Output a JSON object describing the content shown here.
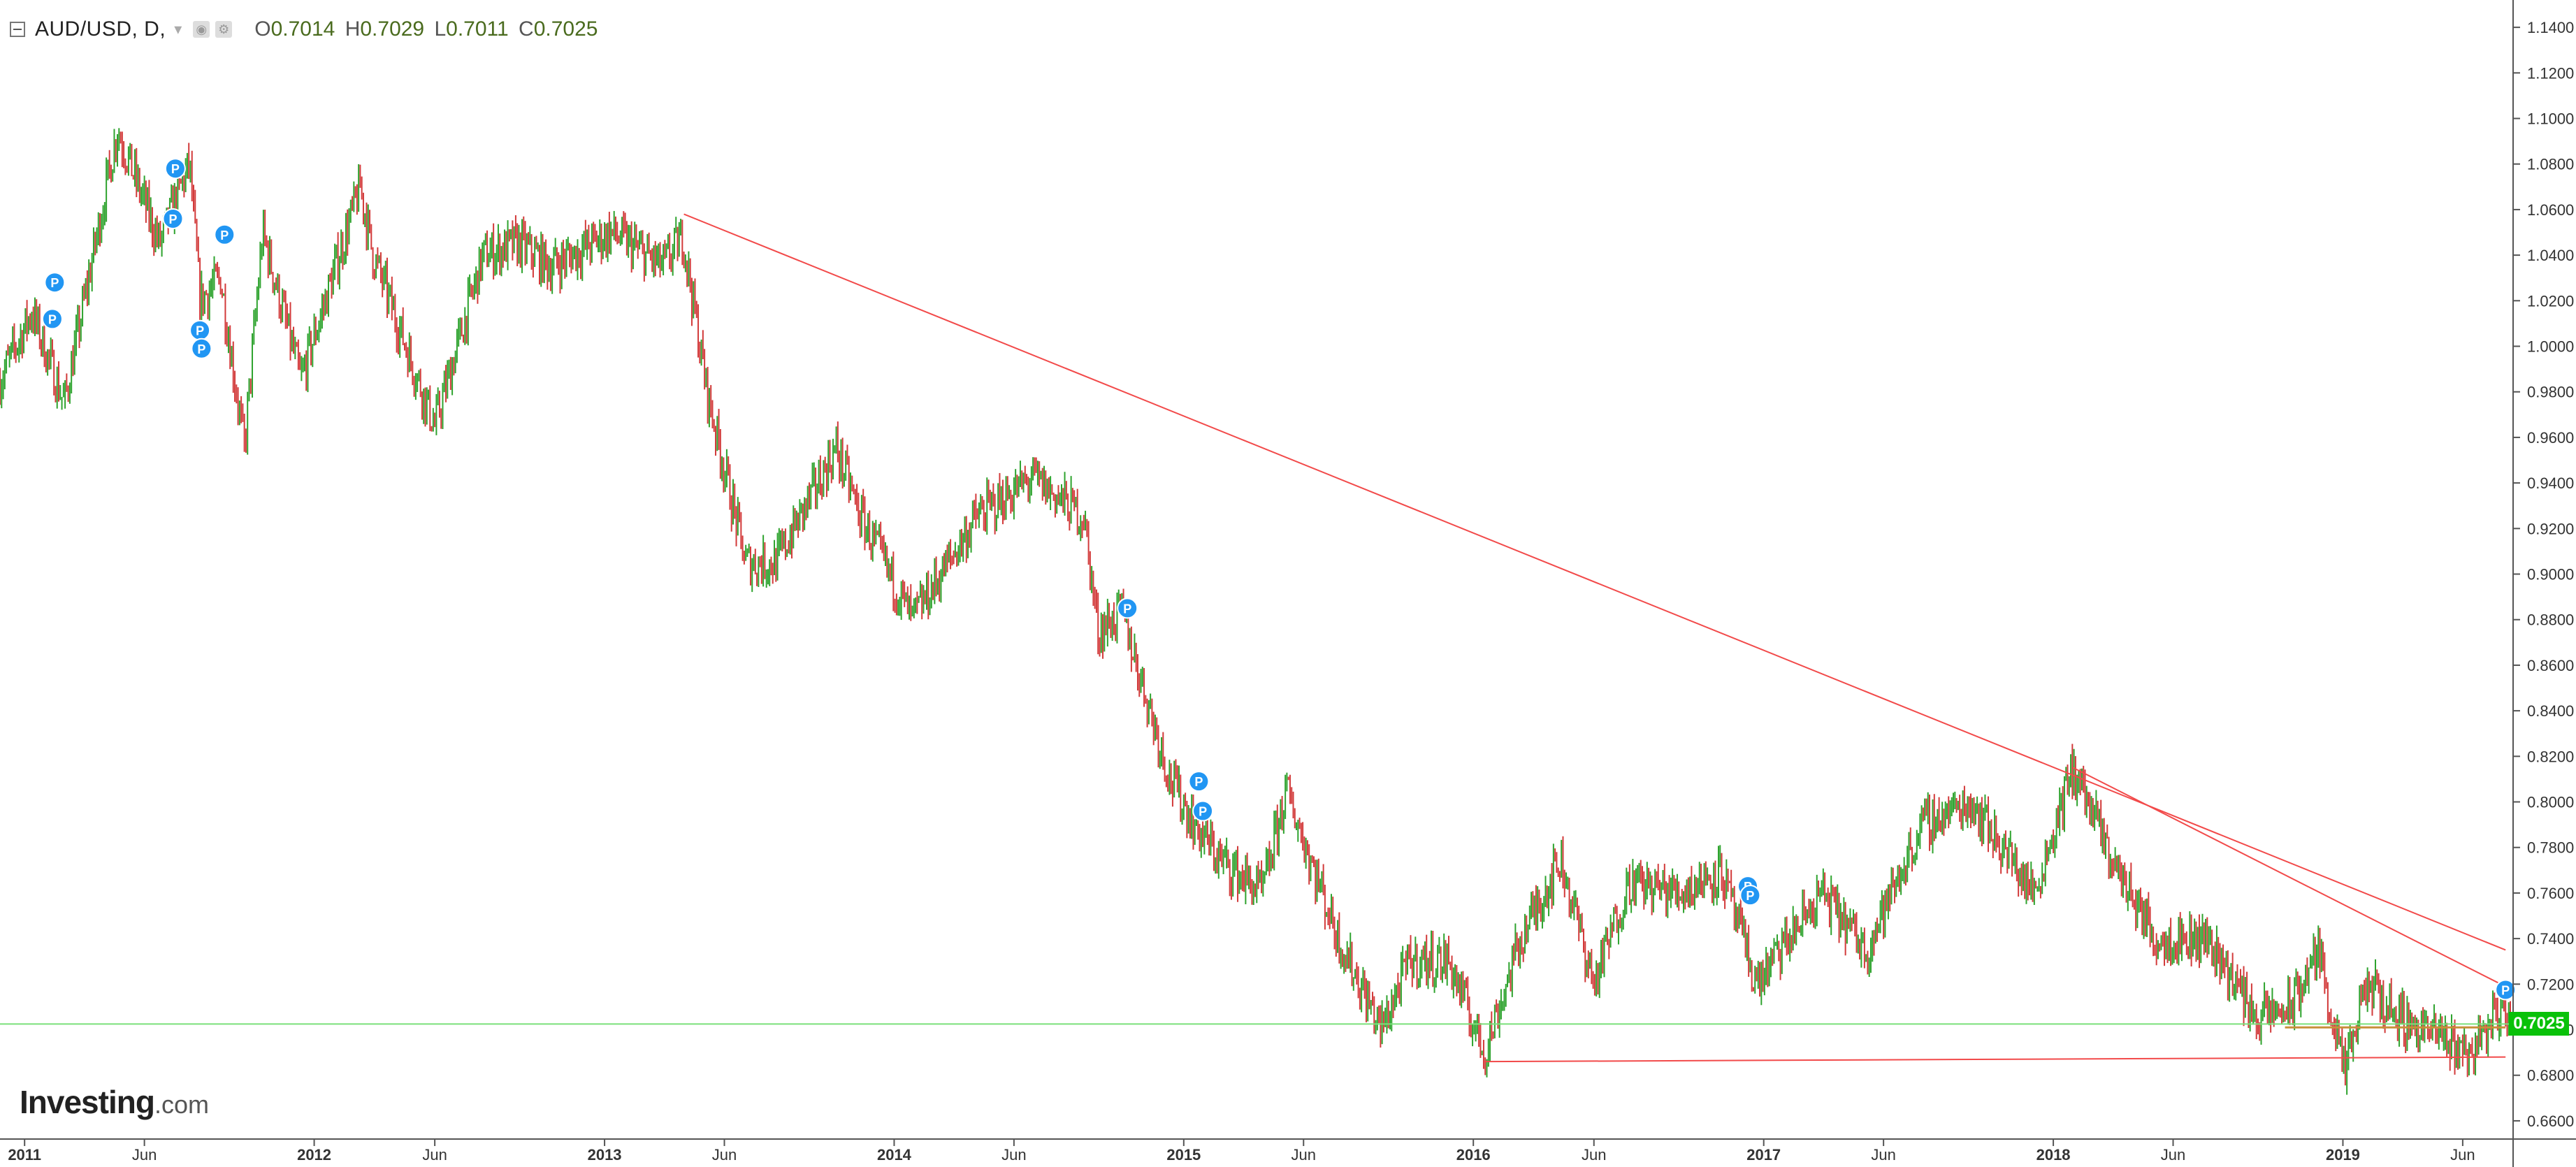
{
  "legend": {
    "symbol": "AUD/USD, D,",
    "open_label": "O",
    "open": "0.7014",
    "high_label": "H",
    "high": "0.7029",
    "low_label": "L",
    "low": "0.7011",
    "close_label": "C",
    "close": "0.7025"
  },
  "branding": {
    "name": "Investing",
    "suffix": ".com"
  },
  "last_price_label": "0.7025",
  "colors": {
    "up": "#2ea32e",
    "down": "#d23a3a",
    "trendline": "#f24a4a",
    "last_price_line": "#7be07b",
    "badge": "#09c109",
    "marker": "#2196f3"
  },
  "chart_data": {
    "type": "line",
    "instrument": "AUD/USD",
    "timeframe": "D",
    "x_axis": {
      "start": "2010-12-01",
      "end": "2019-07-31",
      "ticks": [
        {
          "date": "2011-01-01",
          "label": "2011"
        },
        {
          "date": "2011-06-01",
          "label": "Jun"
        },
        {
          "date": "2012-01-01",
          "label": "2012"
        },
        {
          "date": "2012-06-01",
          "label": "Jun"
        },
        {
          "date": "2013-01-01",
          "label": "2013"
        },
        {
          "date": "2013-06-01",
          "label": "Jun"
        },
        {
          "date": "2014-01-01",
          "label": "2014"
        },
        {
          "date": "2014-06-01",
          "label": "Jun"
        },
        {
          "date": "2015-01-01",
          "label": "2015"
        },
        {
          "date": "2015-06-01",
          "label": "Jun"
        },
        {
          "date": "2016-01-01",
          "label": "2016"
        },
        {
          "date": "2016-06-01",
          "label": "Jun"
        },
        {
          "date": "2017-01-01",
          "label": "2017"
        },
        {
          "date": "2017-06-01",
          "label": "Jun"
        },
        {
          "date": "2018-01-01",
          "label": "2018"
        },
        {
          "date": "2018-06-01",
          "label": "Jun"
        },
        {
          "date": "2019-01-01",
          "label": "2019"
        },
        {
          "date": "2019-06-01",
          "label": "Jun"
        }
      ]
    },
    "y_axis": {
      "min": 0.652,
      "max": 1.152,
      "position": "right",
      "ticks": [
        0.66,
        0.68,
        0.7,
        0.72,
        0.74,
        0.76,
        0.78,
        0.8,
        0.82,
        0.84,
        0.86,
        0.88,
        0.9,
        0.92,
        0.94,
        0.96,
        0.98,
        1.0,
        1.02,
        1.04,
        1.06,
        1.08,
        1.1,
        1.12,
        1.14
      ],
      "tick_labels": [
        "0.6600",
        "0.6800",
        "0.7000",
        "0.7200",
        "0.7400",
        "0.7600",
        "0.7800",
        "0.8000",
        "0.8200",
        "0.8400",
        "0.8600",
        "0.8800",
        "0.9000",
        "0.9200",
        "0.9400",
        "0.9600",
        "0.9800",
        "1.0000",
        "1.0200",
        "1.0400",
        "1.0600",
        "1.0800",
        "1.1000",
        "1.1200",
        "1.1400"
      ]
    },
    "series": [
      {
        "x": [
          "2010-12-01",
          "2011-01-10",
          "2011-02-20",
          "2011-04-28",
          "2011-06-20",
          "2011-07-28",
          "2011-08-10",
          "2011-09-05",
          "2011-10-05",
          "2011-10-28",
          "2011-12-15",
          "2012-02-28",
          "2012-03-15",
          "2012-06-01",
          "2012-08-01",
          "2012-09-15",
          "2012-10-25",
          "2013-01-10",
          "2013-03-15",
          "2013-04-10",
          "2013-05-10",
          "2013-06-28",
          "2013-08-05",
          "2013-10-20",
          "2013-11-20",
          "2014-01-24",
          "2014-04-15",
          "2014-06-25",
          "2014-08-28",
          "2014-09-15",
          "2014-10-15",
          "2014-12-15",
          "2015-01-15",
          "2015-02-15",
          "2015-04-10",
          "2015-05-10",
          "2015-07-15",
          "2015-09-07",
          "2015-10-12",
          "2015-12-01",
          "2016-01-15",
          "2016-03-01",
          "2016-04-20",
          "2016-06-01",
          "2016-07-15",
          "2016-09-15",
          "2016-11-08",
          "2016-12-23",
          "2017-03-15",
          "2017-05-10",
          "2017-07-20",
          "2017-09-20",
          "2017-12-08",
          "2018-01-26",
          "2018-03-15",
          "2018-05-10",
          "2018-07-15",
          "2018-09-15",
          "2018-10-28",
          "2018-12-01",
          "2019-01-03",
          "2019-01-31",
          "2019-03-15",
          "2019-05-15",
          "2019-06-10",
          "2019-07-19",
          "2019-07-31"
        ],
        "close": [
          0.985,
          1.015,
          0.975,
          1.095,
          1.045,
          1.08,
          1.02,
          1.03,
          0.955,
          1.05,
          0.985,
          1.07,
          1.04,
          0.965,
          1.04,
          1.045,
          1.035,
          1.05,
          1.035,
          1.048,
          0.98,
          0.905,
          0.905,
          0.955,
          0.925,
          0.88,
          0.925,
          0.942,
          0.925,
          0.875,
          0.883,
          0.81,
          0.79,
          0.775,
          0.76,
          0.805,
          0.74,
          0.7,
          0.73,
          0.73,
          0.69,
          0.74,
          0.775,
          0.72,
          0.765,
          0.76,
          0.77,
          0.72,
          0.76,
          0.735,
          0.79,
          0.8,
          0.76,
          0.815,
          0.775,
          0.74,
          0.74,
          0.705,
          0.71,
          0.735,
          0.68,
          0.72,
          0.705,
          0.695,
          0.69,
          0.71,
          0.7025
        ]
      }
    ],
    "drawings": [
      {
        "type": "trendline",
        "from": {
          "x": "2013-04-11",
          "y": 1.058
        },
        "to": {
          "x": "2019-07-25",
          "y": 0.735
        }
      },
      {
        "type": "trendline",
        "from": {
          "x": "2018-01-26",
          "y": 0.815
        },
        "to": {
          "x": "2019-07-19",
          "y": 0.72
        }
      },
      {
        "type": "trendline",
        "from": {
          "x": "2016-01-15",
          "y": 0.686
        },
        "to": {
          "x": "2019-07-25",
          "y": 0.688
        }
      },
      {
        "type": "horizontal_line",
        "y": 0.7025
      },
      {
        "type": "support_segment",
        "from": {
          "x": "2018-10-20",
          "y": 0.701
        },
        "to": {
          "x": "2019-07-25",
          "y": 0.701
        }
      }
    ],
    "markers": [
      {
        "x": "2011-02-05",
        "y": 1.012,
        "label": "P"
      },
      {
        "x": "2011-02-08",
        "y": 1.028,
        "label": "P"
      },
      {
        "x": "2011-07-07",
        "y": 1.056,
        "label": "P"
      },
      {
        "x": "2011-07-10",
        "y": 1.078,
        "label": "P"
      },
      {
        "x": "2011-08-10",
        "y": 1.007,
        "label": "P"
      },
      {
        "x": "2011-08-12",
        "y": 0.999,
        "label": "P"
      },
      {
        "x": "2011-09-10",
        "y": 1.049,
        "label": "P"
      },
      {
        "x": "2014-10-22",
        "y": 0.885,
        "label": "P"
      },
      {
        "x": "2015-01-20",
        "y": 0.809,
        "label": "P"
      },
      {
        "x": "2015-01-25",
        "y": 0.796,
        "label": "P"
      },
      {
        "x": "2016-12-12",
        "y": 0.763,
        "label": "P"
      },
      {
        "x": "2016-12-15",
        "y": 0.759,
        "label": "P"
      },
      {
        "x": "2019-07-25",
        "y": 0.7175,
        "label": "P"
      }
    ]
  }
}
